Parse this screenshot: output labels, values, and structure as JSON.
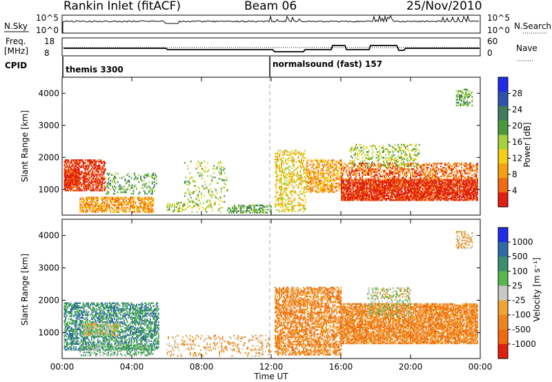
{
  "header": {
    "station": "Rankin Inlet (fitACF)",
    "beam": "Beam 06",
    "date": "25/Nov/2010"
  },
  "status_panel": {
    "nsky_label": "N.Sky",
    "nsky_ticks": [
      "10^5",
      "10^0"
    ],
    "nsearch_label": "N.Search",
    "nsearch_ticks": [
      "10^5",
      "10^0"
    ],
    "freq_label": "Freq.",
    "freq_unit": "[MHz]",
    "freq_ticks": [
      "18",
      "8"
    ],
    "nave_label": "Nave",
    "nave_ticks": [
      "60",
      "0"
    ],
    "cpid_label": "CPID",
    "cpid_segments": [
      {
        "name": "themis 3300"
      },
      {
        "name": "normalsound (fast) 157"
      }
    ]
  },
  "colors": {
    "power_scale": [
      "#1f2de8",
      "#2b55ad",
      "#3d7d5c",
      "#4a9a3c",
      "#a6d13d",
      "#f5cf15",
      "#f4a011",
      "#f06a10",
      "#e0200e"
    ],
    "velocity_scale": [
      "#1f2de8",
      "#2f6aa5",
      "#3a8f6e",
      "#56b84a",
      "#c8c8c4",
      "#f0a330",
      "#ee8420",
      "#f06a10",
      "#e0200e"
    ]
  },
  "chart_data": [
    {
      "type": "heatmap",
      "name": "power",
      "ylabel": "Slant Range [km]",
      "xlabel": "",
      "yticks": [
        1000,
        2000,
        3000,
        4000
      ],
      "ylim": [
        200,
        4500
      ],
      "xlim": [
        0,
        24
      ],
      "colorbar": {
        "label": "Power [dB]",
        "ticks": [
          "28",
          "24",
          "20",
          "16",
          "12",
          "8",
          "4"
        ]
      },
      "regions": [
        {
          "t0": 0.1,
          "t1": 2.5,
          "r0": 950,
          "r1": 1900,
          "level": 8,
          "density": 0.6
        },
        {
          "t0": 0.1,
          "t1": 1.0,
          "r0": 1050,
          "r1": 1600,
          "level": 8,
          "density": 0.85
        },
        {
          "t0": 1.0,
          "t1": 5.2,
          "r0": 280,
          "r1": 750,
          "level": 6,
          "density": 0.6
        },
        {
          "t0": 2.5,
          "t1": 5.4,
          "r0": 850,
          "r1": 1500,
          "level": 3,
          "density": 0.2
        },
        {
          "t0": 6.0,
          "t1": 7.0,
          "r0": 300,
          "r1": 600,
          "level": 4,
          "density": 0.4
        },
        {
          "t0": 7.0,
          "t1": 9.5,
          "r0": 280,
          "r1": 1900,
          "level": 4,
          "density": 0.12
        },
        {
          "t0": 9.5,
          "t1": 12.0,
          "r0": 260,
          "r1": 500,
          "level": 3,
          "density": 0.5
        },
        {
          "t0": 12.2,
          "t1": 14.0,
          "r0": 300,
          "r1": 2200,
          "level": 5,
          "density": 0.35
        },
        {
          "t0": 14.0,
          "t1": 16.0,
          "r0": 900,
          "r1": 1900,
          "level": 6,
          "density": 0.5
        },
        {
          "t0": 16.0,
          "t1": 23.8,
          "r0": 650,
          "r1": 1300,
          "level": 8,
          "density": 0.85
        },
        {
          "t0": 16.0,
          "t1": 23.8,
          "r0": 1300,
          "r1": 1800,
          "level": 7,
          "density": 0.45
        },
        {
          "t0": 16.5,
          "t1": 20.5,
          "r0": 1700,
          "r1": 2400,
          "level": 4,
          "density": 0.25
        },
        {
          "t0": 22.6,
          "t1": 23.5,
          "r0": 3600,
          "r1": 4100,
          "level": 3,
          "density": 0.35
        }
      ]
    },
    {
      "type": "heatmap",
      "name": "velocity",
      "ylabel": "Slant Range [km]",
      "xlabel": "Time UT",
      "xticks": [
        "00:00",
        "04:00",
        "08:00",
        "12:00",
        "16:00",
        "20:00",
        "00:00"
      ],
      "yticks": [
        1000,
        2000,
        3000,
        4000
      ],
      "ylim": [
        200,
        4500
      ],
      "xlim": [
        0,
        24
      ],
      "colorbar": {
        "label": "Velocity [m s⁻¹]",
        "ticks": [
          "1000",
          "500",
          "100",
          "25",
          "-25",
          "-100",
          "-500",
          "-1000"
        ]
      },
      "regions": [
        {
          "t0": 0.1,
          "t1": 5.5,
          "r0": 450,
          "r1": 1900,
          "level": 2,
          "density": 0.55
        },
        {
          "t0": 1.2,
          "t1": 3.2,
          "r0": 900,
          "r1": 1300,
          "level": 4,
          "density": 0.6
        },
        {
          "t0": 1.0,
          "t1": 5.2,
          "r0": 280,
          "r1": 600,
          "level": 3,
          "density": 0.45
        },
        {
          "t0": 6.0,
          "t1": 12.0,
          "r0": 260,
          "r1": 900,
          "level": 5,
          "density": 0.18
        },
        {
          "t0": 12.2,
          "t1": 16.0,
          "r0": 300,
          "r1": 2400,
          "level": 6,
          "density": 0.55
        },
        {
          "t0": 16.0,
          "t1": 23.8,
          "r0": 650,
          "r1": 1900,
          "level": 6,
          "density": 0.75
        },
        {
          "t0": 17.5,
          "t1": 20.0,
          "r0": 1500,
          "r1": 2400,
          "level": 4,
          "density": 0.35
        },
        {
          "t0": 22.6,
          "t1": 23.5,
          "r0": 3600,
          "r1": 4100,
          "level": 5,
          "density": 0.35
        }
      ]
    }
  ]
}
